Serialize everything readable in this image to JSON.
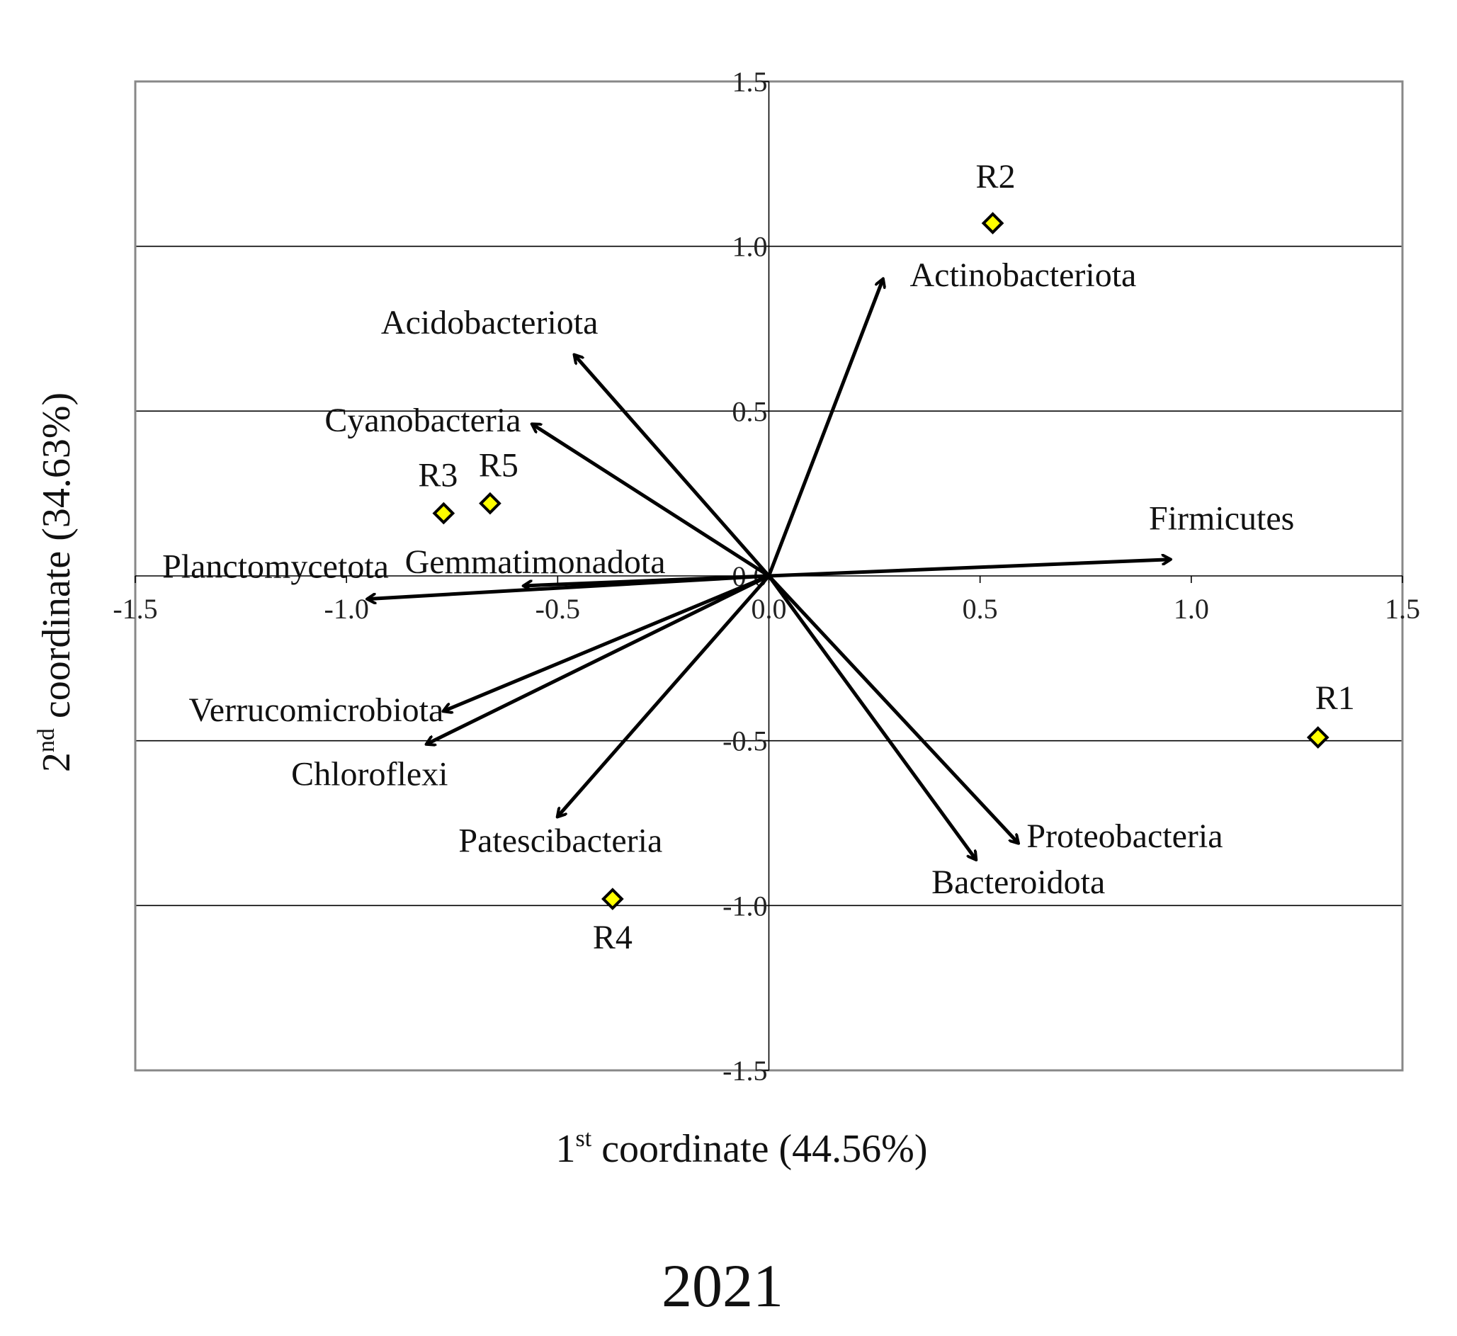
{
  "chart_data": {
    "type": "scatter",
    "subtype": "biplot",
    "title": "2021",
    "xlabel": {
      "num": "1",
      "sup": "st",
      "text": " coordinate (44.56%)"
    },
    "ylabel": {
      "num": "2",
      "sup": "nd",
      "text": " coordinate (34.63%)"
    },
    "xlim": [
      -1.5,
      1.5
    ],
    "ylim": [
      -1.5,
      1.5
    ],
    "xticks": [
      "-1.5",
      "-1.0",
      "-0.5",
      "0.0",
      "0.5",
      "1.0",
      "1.5"
    ],
    "yticks": [
      "1.5",
      "1.0",
      "0.5",
      "0.0",
      "-0.5",
      "-1.0",
      "-1.5"
    ],
    "ytick_values": [
      1.5,
      1.0,
      0.5,
      0.0,
      -0.5,
      -1.0,
      -1.5
    ],
    "xtick_values": [
      -1.5,
      -1.0,
      -0.5,
      0.0,
      0.5,
      1.0,
      1.5
    ],
    "grid": "horizontal",
    "marker_color": "#ffff00",
    "arrow_color": "#000000",
    "points": [
      {
        "label": "R1",
        "x": 1.3,
        "y": -0.49
      },
      {
        "label": "R2",
        "x": 0.53,
        "y": 1.07
      },
      {
        "label": "R3",
        "x": -0.77,
        "y": 0.19
      },
      {
        "label": "R4",
        "x": -0.37,
        "y": -0.98
      },
      {
        "label": "R5",
        "x": -0.66,
        "y": 0.22
      }
    ],
    "vectors": [
      {
        "label": "Actinobacteriota",
        "x": 0.27,
        "y": 0.9
      },
      {
        "label": "Acidobacteriota",
        "x": -0.46,
        "y": 0.67
      },
      {
        "label": "Cyanobacteria",
        "x": -0.56,
        "y": 0.46
      },
      {
        "label": "Firmicutes",
        "x": 0.95,
        "y": 0.05
      },
      {
        "label": "Gemmatimonadota",
        "x": -0.58,
        "y": -0.03
      },
      {
        "label": "Planctomycetota",
        "x": -0.95,
        "y": -0.07
      },
      {
        "label": "Verrucomicrobiota",
        "x": -0.77,
        "y": -0.41
      },
      {
        "label": "Chloroflexi",
        "x": -0.81,
        "y": -0.51
      },
      {
        "label": "Patescibacteria",
        "x": -0.5,
        "y": -0.73
      },
      {
        "label": "Proteobacteria",
        "x": 0.59,
        "y": -0.81
      },
      {
        "label": "Bacteroidota",
        "x": 0.49,
        "y": -0.86
      }
    ]
  }
}
